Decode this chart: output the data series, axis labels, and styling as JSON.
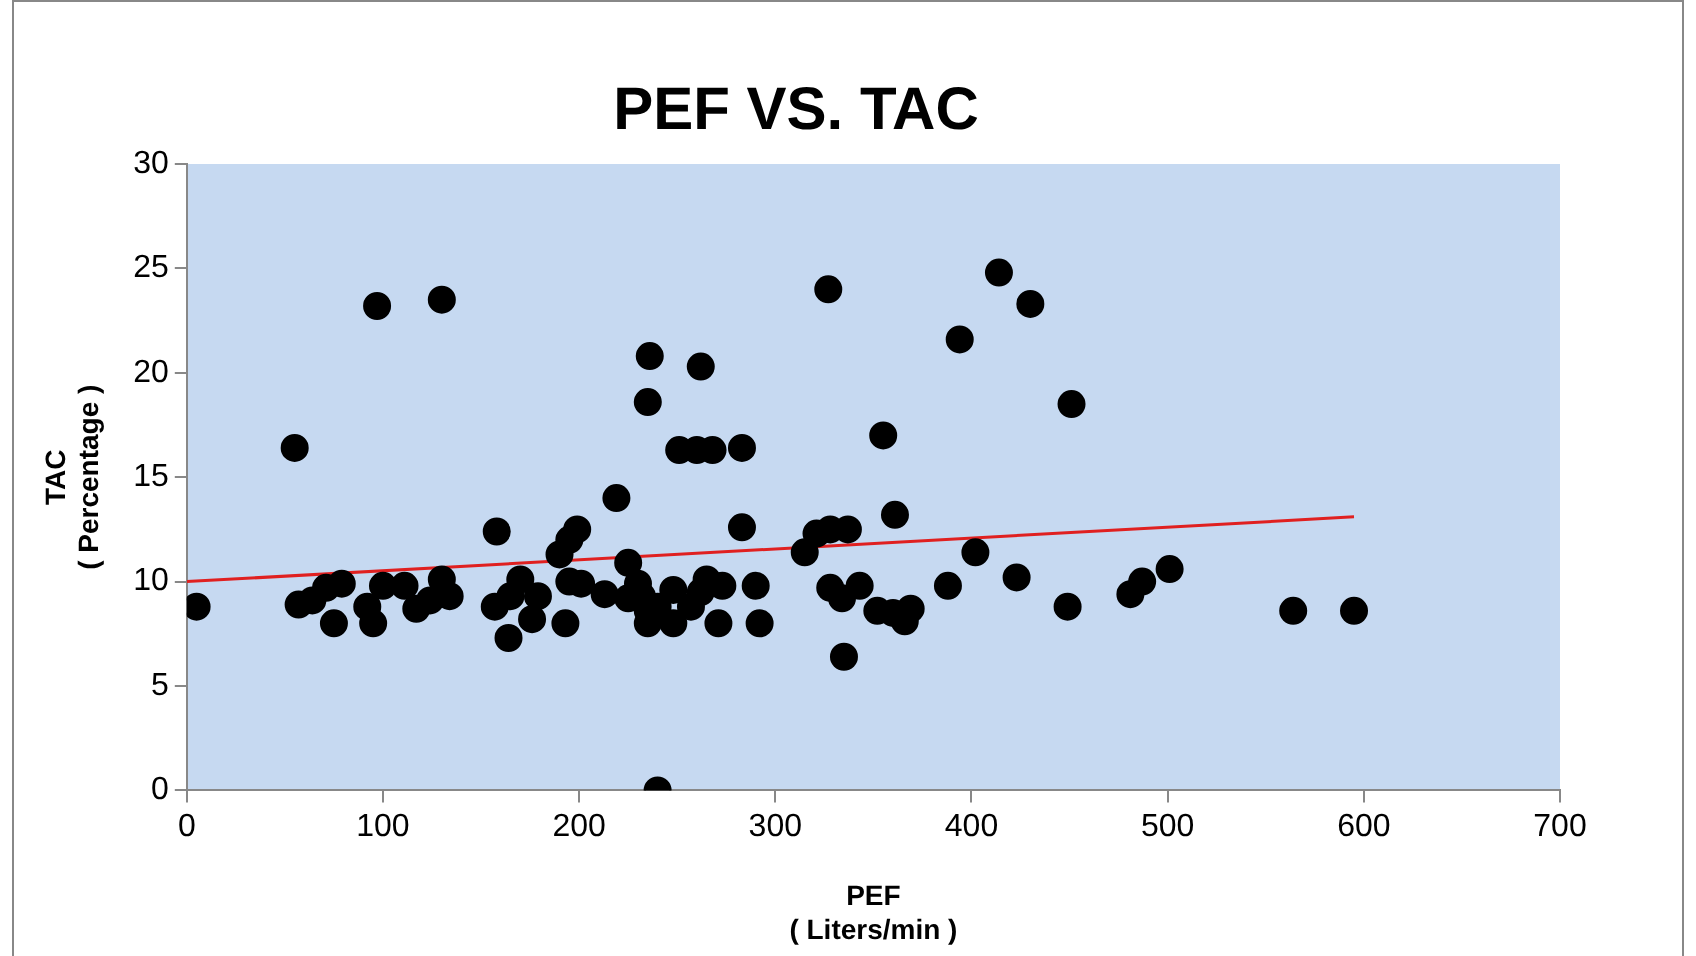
{
  "chart_data": {
    "type": "scatter",
    "title": "PEF VS. TAC",
    "xlabel": "PEF\n( Liters/min )",
    "ylabel": "TAC\n( Percentage )",
    "xlim": [
      0,
      700
    ],
    "xticks": [
      0,
      100,
      200,
      300,
      400,
      500,
      600,
      700
    ],
    "ylim": [
      0,
      30
    ],
    "yticks": [
      0,
      5,
      10,
      15,
      20,
      25,
      30
    ],
    "grid": false,
    "legend": false,
    "marker": "circle",
    "series": [
      {
        "color": "#000000",
        "x": [
          5,
          55,
          57,
          97,
          130,
          64,
          71,
          79,
          75,
          92,
          95,
          100,
          111,
          117,
          124,
          130,
          134,
          157,
          158,
          164,
          165,
          170,
          176,
          179,
          190,
          195,
          199,
          193,
          195,
          201,
          213,
          219,
          225,
          225,
          230,
          235,
          236,
          235,
          235,
          232,
          240,
          240,
          248,
          248,
          251,
          260,
          268,
          283,
          262,
          257,
          262,
          265,
          273,
          271,
          283,
          290,
          292,
          315,
          321,
          328,
          337,
          328,
          334,
          343,
          335,
          327,
          352,
          360,
          366,
          369,
          355,
          361,
          388,
          394,
          402,
          414,
          430,
          423,
          449,
          451,
          481,
          487,
          501,
          564,
          595
        ],
        "values": [
          8.8,
          16.4,
          8.9,
          23.2,
          23.5,
          9.1,
          9.7,
          9.9,
          8.0,
          8.8,
          8.0,
          9.8,
          9.8,
          8.7,
          9.1,
          10.1,
          9.3,
          8.8,
          12.4,
          7.3,
          9.3,
          10.1,
          8.2,
          9.3,
          11.3,
          12.0,
          12.5,
          8.0,
          10.0,
          9.9,
          9.4,
          14.0,
          10.9,
          9.2,
          9.9,
          18.6,
          20.8,
          8.6,
          8.0,
          9.3,
          8.8,
          0,
          9.6,
          8.0,
          16.3,
          16.3,
          16.3,
          16.4,
          20.3,
          8.8,
          9.5,
          10.1,
          9.8,
          8.0,
          12.6,
          9.8,
          8.0,
          11.4,
          12.3,
          12.5,
          12.5,
          9.7,
          9.2,
          9.8,
          6.4,
          24.0,
          8.6,
          8.5,
          8.1,
          8.7,
          17.0,
          13.2,
          9.8,
          21.6,
          11.4,
          24.8,
          23.3,
          10.2,
          8.8,
          18.5,
          9.4,
          10.0,
          10.6,
          8.6,
          8.6
        ]
      },
      {
        "type": "line",
        "color": "#e02020",
        "x": [
          0,
          595
        ],
        "values": [
          10.0,
          13.1
        ],
        "marker": "none"
      }
    ]
  }
}
